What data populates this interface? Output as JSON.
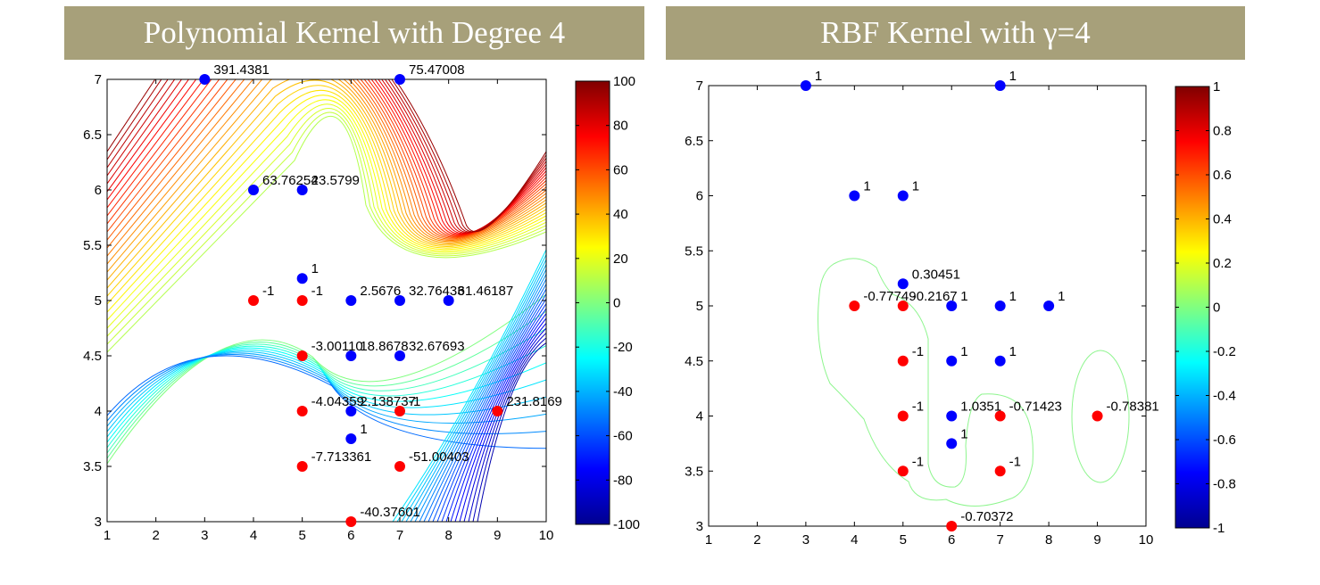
{
  "chart_data": [
    {
      "type": "scatter",
      "title": "Polynomial Kernel with Degree 4",
      "xlim": [
        1,
        10
      ],
      "ylim": [
        3,
        7
      ],
      "xticks": [
        "1",
        "2",
        "3",
        "4",
        "5",
        "6",
        "7",
        "8",
        "9",
        "10"
      ],
      "yticks": [
        "3",
        "3.5",
        "4",
        "4.5",
        "5",
        "5.5",
        "6",
        "6.5",
        "7"
      ],
      "colorbar": {
        "range": [
          -100,
          100
        ],
        "ticks": [
          "100",
          "80",
          "60",
          "40",
          "20",
          "0",
          "-20",
          "-40",
          "-60",
          "-80",
          "-100"
        ]
      },
      "series": [
        {
          "color": "#0000ff",
          "points": [
            {
              "x": 3,
              "y": 7,
              "label": "391.4381"
            },
            {
              "x": 7,
              "y": 7,
              "label": "75.47008"
            },
            {
              "x": 4,
              "y": 6,
              "label": "63.76254"
            },
            {
              "x": 5,
              "y": 6,
              "label": "23.5799"
            },
            {
              "x": 5,
              "y": 5.2,
              "label": "1"
            },
            {
              "x": 6,
              "y": 5,
              "label": "2.5676"
            },
            {
              "x": 7,
              "y": 5,
              "label": "32.76433"
            },
            {
              "x": 8,
              "y": 5,
              "label": "61.46187"
            },
            {
              "x": 6,
              "y": 4.5,
              "label": "18.8678"
            },
            {
              "x": 7,
              "y": 4.5,
              "label": "32.67693"
            },
            {
              "x": 6,
              "y": 4,
              "label": "2.138737"
            },
            {
              "x": 6,
              "y": 3.75,
              "label": "1"
            }
          ]
        },
        {
          "color": "#ff0000",
          "points": [
            {
              "x": 4,
              "y": 5,
              "label": "-1"
            },
            {
              "x": 5,
              "y": 5,
              "label": "-1"
            },
            {
              "x": 5,
              "y": 4.5,
              "label": "-3.00110"
            },
            {
              "x": 5,
              "y": 4,
              "label": "-4.04359"
            },
            {
              "x": 7,
              "y": 4,
              "label": "-1"
            },
            {
              "x": 9,
              "y": 4,
              "label": "231.8169"
            },
            {
              "x": 5,
              "y": 3.5,
              "label": "-7.713361"
            },
            {
              "x": 7,
              "y": 3.5,
              "label": "-51.00403"
            },
            {
              "x": 6,
              "y": 3,
              "label": "-40.37601"
            }
          ]
        }
      ]
    },
    {
      "type": "scatter",
      "title": "RBF Kernel with γ=4",
      "xlim": [
        1,
        10
      ],
      "ylim": [
        3,
        7
      ],
      "xticks": [
        "1",
        "2",
        "3",
        "4",
        "5",
        "6",
        "7",
        "8",
        "9",
        "10"
      ],
      "yticks": [
        "3",
        "3.5",
        "4",
        "4.5",
        "5",
        "5.5",
        "6",
        "6.5",
        "7"
      ],
      "colorbar": {
        "range": [
          -1,
          1
        ],
        "ticks": [
          "1",
          "0.8",
          "0.6",
          "0.4",
          "0.2",
          "0",
          "-0.2",
          "-0.4",
          "-0.6",
          "-0.8",
          "-1"
        ]
      },
      "series": [
        {
          "color": "#0000ff",
          "points": [
            {
              "x": 3,
              "y": 7,
              "label": "1"
            },
            {
              "x": 7,
              "y": 7,
              "label": "1"
            },
            {
              "x": 4,
              "y": 6,
              "label": "1"
            },
            {
              "x": 5,
              "y": 6,
              "label": "1"
            },
            {
              "x": 5,
              "y": 5.2,
              "label": "0.30451"
            },
            {
              "x": 6,
              "y": 5,
              "label": "1"
            },
            {
              "x": 7,
              "y": 5,
              "label": "1"
            },
            {
              "x": 8,
              "y": 5,
              "label": "1"
            },
            {
              "x": 6,
              "y": 4.5,
              "label": "1"
            },
            {
              "x": 7,
              "y": 4.5,
              "label": "1"
            },
            {
              "x": 6,
              "y": 4,
              "label": "1.0351"
            },
            {
              "x": 6,
              "y": 3.75,
              "label": "1"
            }
          ]
        },
        {
          "color": "#ff0000",
          "points": [
            {
              "x": 4,
              "y": 5,
              "label": "-0.77749"
            },
            {
              "x": 5,
              "y": 5,
              "label": "-0.2167"
            },
            {
              "x": 5,
              "y": 4.5,
              "label": "-1"
            },
            {
              "x": 5,
              "y": 4,
              "label": "-1"
            },
            {
              "x": 7,
              "y": 4,
              "label": "-0.71423"
            },
            {
              "x": 9,
              "y": 4,
              "label": "-0.78381"
            },
            {
              "x": 5,
              "y": 3.5,
              "label": "-1"
            },
            {
              "x": 7,
              "y": 3.5,
              "label": "-1"
            },
            {
              "x": 6,
              "y": 3,
              "label": "-0.70372"
            }
          ]
        }
      ]
    }
  ]
}
